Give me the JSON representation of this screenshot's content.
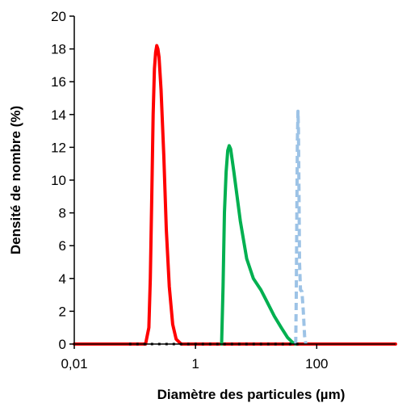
{
  "chart_data": {
    "type": "line",
    "title": "",
    "xlabel": "Diamètre des particules (µm)",
    "ylabel": "Densité  de nombre (%)",
    "x_scale": "log",
    "xlim": [
      0.01,
      2000
    ],
    "ylim": [
      0,
      20
    ],
    "x_ticks": [
      {
        "value": 0.01,
        "label": "0,01"
      },
      {
        "value": 1,
        "label": "1"
      },
      {
        "value": 100,
        "label": "100"
      }
    ],
    "y_ticks": [
      {
        "value": 0,
        "label": "0"
      },
      {
        "value": 2,
        "label": "2"
      },
      {
        "value": 4,
        "label": "4"
      },
      {
        "value": 6,
        "label": "6"
      },
      {
        "value": 8,
        "label": "8"
      },
      {
        "value": 10,
        "label": "10"
      },
      {
        "value": 12,
        "label": "12"
      },
      {
        "value": 14,
        "label": "14"
      },
      {
        "value": 16,
        "label": "16"
      },
      {
        "value": 18,
        "label": "18"
      },
      {
        "value": 20,
        "label": "20"
      }
    ],
    "grid": false,
    "legend": "none",
    "series": [
      {
        "color": "#ff0000",
        "style": "solid",
        "points": [
          [
            0.01,
            0
          ],
          [
            0.12,
            0
          ],
          [
            0.15,
            0
          ],
          [
            0.17,
            1.0
          ],
          [
            0.18,
            4.0
          ],
          [
            0.19,
            9.0
          ],
          [
            0.2,
            14.0
          ],
          [
            0.21,
            16.8
          ],
          [
            0.22,
            17.8
          ],
          [
            0.23,
            18.2
          ],
          [
            0.24,
            18.0
          ],
          [
            0.25,
            17.5
          ],
          [
            0.27,
            15.5
          ],
          [
            0.3,
            11.5
          ],
          [
            0.33,
            7.0
          ],
          [
            0.37,
            3.5
          ],
          [
            0.42,
            1.2
          ],
          [
            0.48,
            0.3
          ],
          [
            0.58,
            0
          ],
          [
            1,
            0
          ],
          [
            100,
            0
          ],
          [
            2000,
            0
          ]
        ]
      },
      {
        "color": "#00b050",
        "style": "solid",
        "points": [
          [
            2.7,
            0
          ],
          [
            2.85,
            3.5
          ],
          [
            3.0,
            8.0
          ],
          [
            3.2,
            10.5
          ],
          [
            3.4,
            11.8
          ],
          [
            3.6,
            12.1
          ],
          [
            3.8,
            11.9
          ],
          [
            4.3,
            10.5
          ],
          [
            5.5,
            7.5
          ],
          [
            7.0,
            5.2
          ],
          [
            9.0,
            4.0
          ],
          [
            12.0,
            3.3
          ],
          [
            15.0,
            2.6
          ],
          [
            20.0,
            1.7
          ],
          [
            26.0,
            1.0
          ],
          [
            33.0,
            0.4
          ],
          [
            40.0,
            0.1
          ],
          [
            45.0,
            0
          ]
        ]
      },
      {
        "color": "#9dc3e6",
        "style": "dashed",
        "points": [
          [
            45,
            0
          ],
          [
            46,
            3.0
          ],
          [
            47,
            8.0
          ],
          [
            48,
            12.5
          ],
          [
            49,
            14.2
          ],
          [
            50,
            13.0
          ],
          [
            51,
            9.0
          ],
          [
            52,
            5.0
          ],
          [
            54,
            3.3
          ],
          [
            57,
            3.2
          ],
          [
            60,
            2.0
          ],
          [
            63,
            0.5
          ],
          [
            66,
            0
          ]
        ]
      },
      {
        "color": "#000000",
        "style": "dotted",
        "points": [
          [
            0.08,
            0
          ],
          [
            60,
            0
          ]
        ]
      }
    ]
  }
}
